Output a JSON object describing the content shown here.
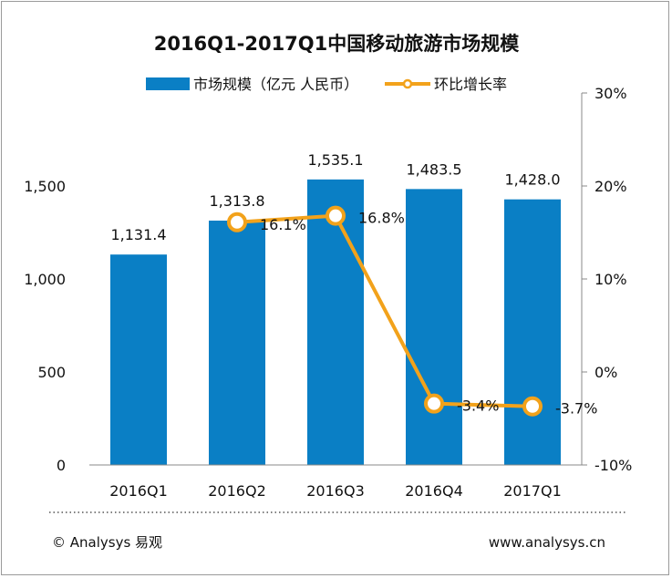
{
  "chart_data": {
    "type": "bar",
    "title": "2016Q1-2017Q1中国移动旅游市场规模",
    "categories": [
      "2016Q1",
      "2016Q2",
      "2016Q3",
      "2016Q4",
      "2017Q1"
    ],
    "series": [
      {
        "name": "市场规模（亿元 人民币）",
        "type": "bar",
        "axis": "left",
        "color": "#0a7fc5",
        "values": [
          1131.4,
          1313.8,
          1535.1,
          1483.5,
          1428.0
        ],
        "labels": [
          "1,131.4",
          "1,313.8",
          "1,535.1",
          "1,483.5",
          "1,428.0"
        ]
      },
      {
        "name": "环比增长率",
        "type": "line",
        "axis": "right",
        "color": "#f2a21b",
        "values": [
          null,
          16.1,
          16.8,
          -3.4,
          -3.7
        ],
        "labels": [
          "",
          "16.1%",
          "16.8%",
          "-3.4%",
          "-3.7%"
        ]
      }
    ],
    "left_axis": {
      "ylim": [
        0,
        2000
      ],
      "ticks": [
        0,
        500,
        1000,
        1500
      ],
      "tick_labels": [
        "0",
        "500",
        "1,000",
        "1,500"
      ]
    },
    "right_axis": {
      "ylim": [
        -10,
        30
      ],
      "ticks": [
        -10,
        0,
        10,
        20,
        30
      ],
      "tick_labels": [
        "-10%",
        "0%",
        "10%",
        "20%",
        "30%"
      ]
    },
    "grid": false,
    "legend_position": "top"
  },
  "footer": {
    "left_text": "© Analysys 易观",
    "right_text": "www.analysys.cn"
  }
}
